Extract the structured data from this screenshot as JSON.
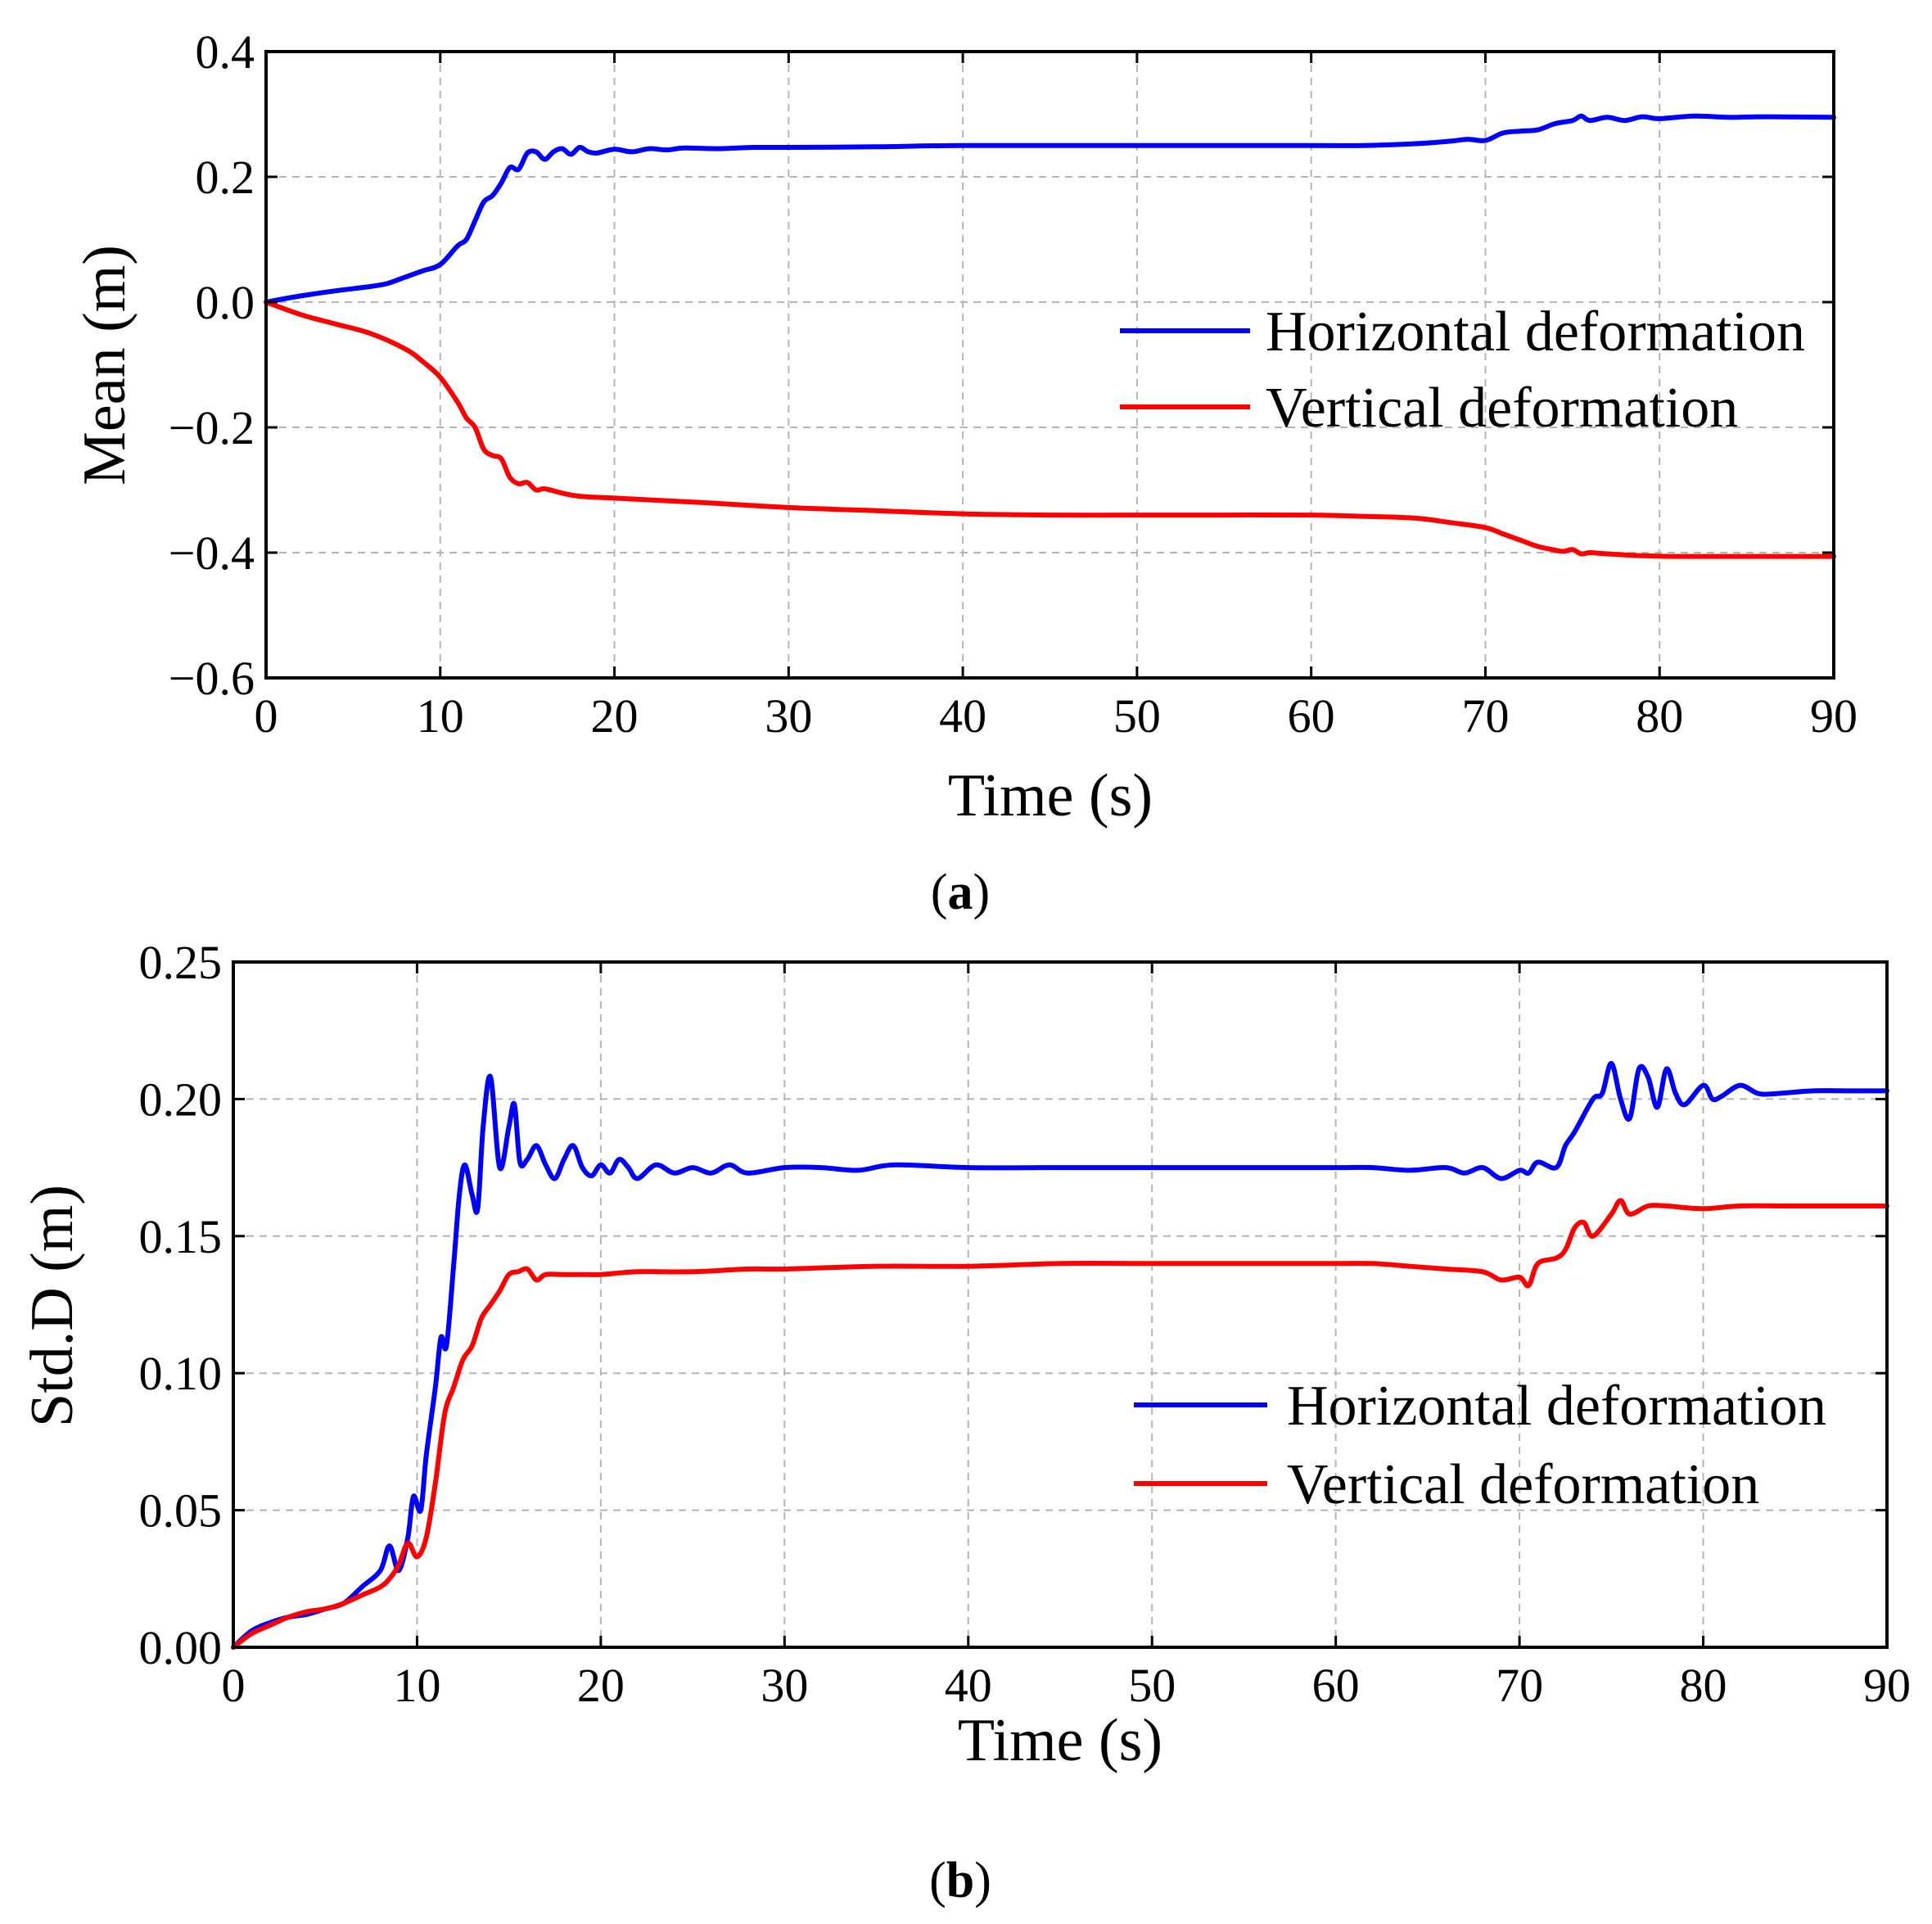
{
  "chart_data": [
    {
      "type": "line",
      "panel_label_open": "(",
      "panel_label_letter": "a",
      "panel_label_close": ")",
      "xlabel": "Time (s)",
      "ylabel": "Mean (m)",
      "xlim": [
        0,
        90
      ],
      "ylim": [
        -0.6,
        0.4
      ],
      "grid": true,
      "legend_position": "center-right",
      "x_ticks": [
        "0",
        "10",
        "20",
        "30",
        "40",
        "50",
        "60",
        "70",
        "80",
        "90"
      ],
      "y_ticks": [
        "0.4",
        "0.2",
        "0.0",
        "−0.2",
        "−0.4",
        "−0.6"
      ],
      "series": [
        {
          "name": "Horizontal deformation",
          "color": "#0000ff",
          "points": [
            [
              0,
              0
            ],
            [
              2,
              0.01
            ],
            [
              4,
              0.018
            ],
            [
              6,
              0.025
            ],
            [
              7,
              0.03
            ],
            [
              8,
              0.04
            ],
            [
              9,
              0.05
            ],
            [
              10,
              0.06
            ],
            [
              11,
              0.09
            ],
            [
              11.5,
              0.1
            ],
            [
              12,
              0.13
            ],
            [
              12.5,
              0.16
            ],
            [
              13,
              0.17
            ],
            [
              13.5,
              0.19
            ],
            [
              14,
              0.215
            ],
            [
              14.5,
              0.212
            ],
            [
              15,
              0.238
            ],
            [
              15.5,
              0.24
            ],
            [
              16,
              0.228
            ],
            [
              16.5,
              0.24
            ],
            [
              17,
              0.245
            ],
            [
              17.5,
              0.236
            ],
            [
              18,
              0.247
            ],
            [
              18.5,
              0.24
            ],
            [
              19,
              0.238
            ],
            [
              20,
              0.244
            ],
            [
              21,
              0.24
            ],
            [
              22,
              0.245
            ],
            [
              23,
              0.243
            ],
            [
              24,
              0.246
            ],
            [
              26,
              0.245
            ],
            [
              28,
              0.247
            ],
            [
              30,
              0.247
            ],
            [
              35,
              0.248
            ],
            [
              40,
              0.25
            ],
            [
              50,
              0.25
            ],
            [
              60,
              0.25
            ],
            [
              63,
              0.25
            ],
            [
              66,
              0.253
            ],
            [
              68,
              0.257
            ],
            [
              69,
              0.26
            ],
            [
              70,
              0.258
            ],
            [
              71,
              0.27
            ],
            [
              72,
              0.273
            ],
            [
              73,
              0.275
            ],
            [
              74,
              0.285
            ],
            [
              75,
              0.29
            ],
            [
              75.5,
              0.297
            ],
            [
              76,
              0.29
            ],
            [
              77,
              0.295
            ],
            [
              78,
              0.29
            ],
            [
              79,
              0.296
            ],
            [
              80,
              0.293
            ],
            [
              82,
              0.297
            ],
            [
              84,
              0.295
            ],
            [
              86,
              0.296
            ],
            [
              90,
              0.295
            ]
          ]
        },
        {
          "name": "Vertical deformation",
          "color": "#ff0000",
          "points": [
            [
              0,
              0
            ],
            [
              2,
              -0.02
            ],
            [
              4,
              -0.035
            ],
            [
              6,
              -0.05
            ],
            [
              8,
              -0.075
            ],
            [
              9,
              -0.095
            ],
            [
              10,
              -0.12
            ],
            [
              11,
              -0.16
            ],
            [
              11.5,
              -0.185
            ],
            [
              12,
              -0.2
            ],
            [
              12.5,
              -0.235
            ],
            [
              13,
              -0.245
            ],
            [
              13.5,
              -0.25
            ],
            [
              14,
              -0.28
            ],
            [
              14.5,
              -0.29
            ],
            [
              15,
              -0.288
            ],
            [
              15.5,
              -0.3
            ],
            [
              16,
              -0.298
            ],
            [
              17,
              -0.305
            ],
            [
              18,
              -0.31
            ],
            [
              20,
              -0.313
            ],
            [
              25,
              -0.32
            ],
            [
              30,
              -0.328
            ],
            [
              35,
              -0.333
            ],
            [
              40,
              -0.338
            ],
            [
              45,
              -0.34
            ],
            [
              50,
              -0.34
            ],
            [
              55,
              -0.34
            ],
            [
              60,
              -0.34
            ],
            [
              63,
              -0.342
            ],
            [
              66,
              -0.345
            ],
            [
              68,
              -0.352
            ],
            [
              70,
              -0.36
            ],
            [
              71,
              -0.37
            ],
            [
              72,
              -0.38
            ],
            [
              73,
              -0.39
            ],
            [
              74,
              -0.396
            ],
            [
              74.5,
              -0.398
            ],
            [
              75,
              -0.395
            ],
            [
              75.5,
              -0.402
            ],
            [
              76,
              -0.4
            ],
            [
              77,
              -0.402
            ],
            [
              79,
              -0.405
            ],
            [
              81,
              -0.406
            ],
            [
              85,
              -0.406
            ],
            [
              90,
              -0.406
            ]
          ]
        }
      ]
    },
    {
      "type": "line",
      "panel_label_open": "(",
      "panel_label_letter": "b",
      "panel_label_close": ")",
      "xlabel": "Time (s)",
      "ylabel": "Std.D (m)",
      "xlim": [
        0,
        90
      ],
      "ylim": [
        0,
        0.25
      ],
      "grid": true,
      "legend_position": "center-right",
      "x_ticks": [
        "0",
        "10",
        "20",
        "30",
        "40",
        "50",
        "60",
        "70",
        "80",
        "90"
      ],
      "y_ticks": [
        "0.25",
        "0.20",
        "0.15",
        "0.10",
        "0.05",
        "0.00"
      ],
      "series": [
        {
          "name": "Horizontal deformation",
          "color": "#0000ff",
          "points": [
            [
              0,
              0
            ],
            [
              1,
              0.006
            ],
            [
              2,
              0.009
            ],
            [
              3,
              0.011
            ],
            [
              4,
              0.012
            ],
            [
              5,
              0.014
            ],
            [
              6,
              0.016
            ],
            [
              7,
              0.022
            ],
            [
              8,
              0.028
            ],
            [
              8.5,
              0.037
            ],
            [
              9,
              0.028
            ],
            [
              9.5,
              0.04
            ],
            [
              9.8,
              0.055
            ],
            [
              10.2,
              0.05
            ],
            [
              10.5,
              0.07
            ],
            [
              11,
              0.095
            ],
            [
              11.3,
              0.113
            ],
            [
              11.6,
              0.11
            ],
            [
              12,
              0.14
            ],
            [
              12.3,
              0.165
            ],
            [
              12.6,
              0.176
            ],
            [
              13,
              0.165
            ],
            [
              13.3,
              0.16
            ],
            [
              13.6,
              0.19
            ],
            [
              14,
              0.208
            ],
            [
              14.5,
              0.175
            ],
            [
              15,
              0.19
            ],
            [
              15.3,
              0.198
            ],
            [
              15.6,
              0.177
            ],
            [
              16,
              0.178
            ],
            [
              16.5,
              0.183
            ],
            [
              17,
              0.176
            ],
            [
              17.5,
              0.171
            ],
            [
              18,
              0.178
            ],
            [
              18.5,
              0.183
            ],
            [
              19,
              0.175
            ],
            [
              19.5,
              0.172
            ],
            [
              20,
              0.176
            ],
            [
              20.5,
              0.173
            ],
            [
              21,
              0.178
            ],
            [
              21.5,
              0.175
            ],
            [
              22,
              0.171
            ],
            [
              23,
              0.176
            ],
            [
              24,
              0.173
            ],
            [
              25,
              0.175
            ],
            [
              26,
              0.173
            ],
            [
              27,
              0.176
            ],
            [
              28,
              0.173
            ],
            [
              30,
              0.175
            ],
            [
              32,
              0.175
            ],
            [
              34,
              0.174
            ],
            [
              36,
              0.176
            ],
            [
              40,
              0.175
            ],
            [
              45,
              0.175
            ],
            [
              50,
              0.175
            ],
            [
              55,
              0.175
            ],
            [
              60,
              0.175
            ],
            [
              62,
              0.175
            ],
            [
              64,
              0.174
            ],
            [
              66,
              0.175
            ],
            [
              67,
              0.173
            ],
            [
              68,
              0.175
            ],
            [
              69,
              0.171
            ],
            [
              70,
              0.174
            ],
            [
              70.5,
              0.173
            ],
            [
              71,
              0.177
            ],
            [
              72,
              0.175
            ],
            [
              72.5,
              0.183
            ],
            [
              73,
              0.188
            ],
            [
              74,
              0.2
            ],
            [
              74.5,
              0.202
            ],
            [
              75,
              0.213
            ],
            [
              75.5,
              0.2
            ],
            [
              76,
              0.193
            ],
            [
              76.5,
              0.211
            ],
            [
              77,
              0.208
            ],
            [
              77.5,
              0.197
            ],
            [
              78,
              0.211
            ],
            [
              78.5,
              0.202
            ],
            [
              79,
              0.198
            ],
            [
              80,
              0.205
            ],
            [
              80.5,
              0.2
            ],
            [
              81,
              0.201
            ],
            [
              82,
              0.205
            ],
            [
              83,
              0.202
            ],
            [
              84,
              0.202
            ],
            [
              86,
              0.203
            ],
            [
              88,
              0.203
            ],
            [
              90,
              0.203
            ]
          ]
        },
        {
          "name": "Vertical deformation",
          "color": "#ff0000",
          "points": [
            [
              0,
              0
            ],
            [
              1,
              0.005
            ],
            [
              2,
              0.008
            ],
            [
              3,
              0.011
            ],
            [
              4,
              0.013
            ],
            [
              5,
              0.014
            ],
            [
              6,
              0.016
            ],
            [
              7,
              0.019
            ],
            [
              8,
              0.022
            ],
            [
              8.5,
              0.025
            ],
            [
              9,
              0.03
            ],
            [
              9.5,
              0.038
            ],
            [
              10,
              0.033
            ],
            [
              10.5,
              0.04
            ],
            [
              11,
              0.06
            ],
            [
              11.5,
              0.085
            ],
            [
              12,
              0.095
            ],
            [
              12.5,
              0.105
            ],
            [
              13,
              0.11
            ],
            [
              13.5,
              0.12
            ],
            [
              14,
              0.125
            ],
            [
              14.5,
              0.13
            ],
            [
              15,
              0.136
            ],
            [
              15.5,
              0.137
            ],
            [
              16,
              0.138
            ],
            [
              16.5,
              0.134
            ],
            [
              17,
              0.136
            ],
            [
              18,
              0.136
            ],
            [
              19,
              0.136
            ],
            [
              20,
              0.136
            ],
            [
              22,
              0.137
            ],
            [
              25,
              0.137
            ],
            [
              28,
              0.138
            ],
            [
              30,
              0.138
            ],
            [
              35,
              0.139
            ],
            [
              40,
              0.139
            ],
            [
              45,
              0.14
            ],
            [
              50,
              0.14
            ],
            [
              55,
              0.14
            ],
            [
              60,
              0.14
            ],
            [
              62,
              0.14
            ],
            [
              64,
              0.139
            ],
            [
              66,
              0.138
            ],
            [
              68,
              0.137
            ],
            [
              69,
              0.134
            ],
            [
              70,
              0.135
            ],
            [
              70.5,
              0.132
            ],
            [
              71,
              0.14
            ],
            [
              72,
              0.142
            ],
            [
              72.5,
              0.145
            ],
            [
              73,
              0.153
            ],
            [
              73.5,
              0.155
            ],
            [
              74,
              0.15
            ],
            [
              75,
              0.158
            ],
            [
              75.5,
              0.163
            ],
            [
              76,
              0.158
            ],
            [
              77,
              0.161
            ],
            [
              78,
              0.161
            ],
            [
              80,
              0.16
            ],
            [
              82,
              0.161
            ],
            [
              85,
              0.161
            ],
            [
              90,
              0.161
            ]
          ]
        }
      ]
    }
  ]
}
